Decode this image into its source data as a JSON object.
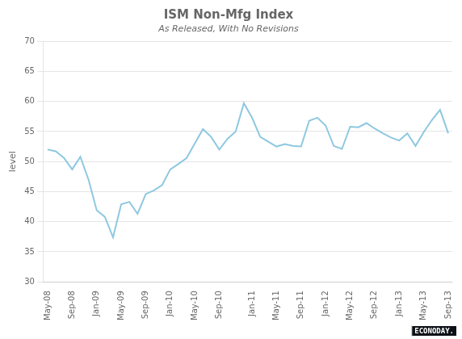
{
  "chart_data": {
    "type": "line",
    "title": "ISM Non-Mfg Index",
    "subtitle": "As Released, With No Revisions",
    "ylabel": "level",
    "annotation": "ECONODAY.",
    "categories": [
      "May-08",
      null,
      null,
      "Sep-08",
      null,
      null,
      "Jan-09",
      null,
      null,
      "May-09",
      null,
      null,
      "Sep-09",
      null,
      null,
      "Jan-10",
      null,
      null,
      "May-10",
      null,
      null,
      "Sep-10",
      null,
      null,
      null,
      "Jan-11",
      null,
      null,
      "May-11",
      null,
      null,
      "Sep-11",
      null,
      null,
      "Jan-12",
      null,
      null,
      "May-12",
      null,
      null,
      "Sep-12",
      null,
      null,
      "Jan-13",
      null,
      null,
      "May-13",
      null,
      null,
      "Sep-13"
    ],
    "values": [
      52.0,
      51.7,
      50.6,
      48.7,
      50.8,
      47.0,
      41.9,
      40.8,
      37.4,
      42.9,
      43.3,
      41.3,
      44.6,
      45.2,
      46.1,
      48.7,
      49.6,
      50.6,
      53.0,
      55.4,
      54.1,
      52.0,
      53.8,
      55.0,
      59.7,
      57.3,
      54.1,
      53.3,
      52.5,
      52.9,
      52.6,
      52.5,
      56.8,
      57.3,
      56.0,
      52.6,
      52.1,
      55.8,
      55.7,
      56.4,
      55.5,
      54.7,
      54.0,
      53.5,
      54.7,
      52.6,
      54.9,
      56.9,
      58.6,
      54.7
    ],
    "color": "#8ec8e0",
    "ylim": [
      30,
      70
    ],
    "yticks": [
      30,
      35,
      40,
      45,
      50,
      55,
      60,
      65,
      70
    ],
    "grid": true
  }
}
